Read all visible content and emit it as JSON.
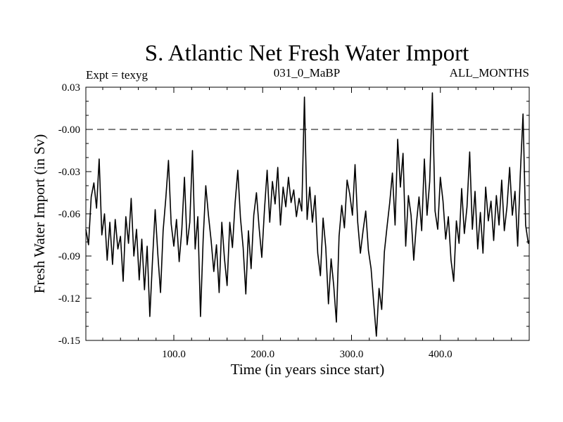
{
  "chart_data": {
    "type": "line",
    "title": "S. Atlantic Net Fresh Water Import",
    "subtitle_left": "Expt = texyg",
    "subtitle_center": "031_0_MaBP",
    "subtitle_right": "ALL_MONTHS",
    "xlabel": "Time (in years since start)",
    "ylabel": "Fresh Water Import (in Sv)",
    "xlim": [
      1,
      500
    ],
    "ylim": [
      -0.15,
      0.03
    ],
    "xticks": [
      100,
      200,
      300,
      400
    ],
    "xtick_labels": [
      "100.0",
      "200.0",
      "300.0",
      "400.0"
    ],
    "yticks": [
      0.03,
      0.0,
      -0.03,
      -0.06,
      -0.09,
      -0.12,
      -0.15
    ],
    "ytick_labels": [
      "0.03",
      "-0.00",
      "-0.03",
      "-0.06",
      "-0.09",
      "-0.12",
      "-0.15"
    ],
    "reference_line": {
      "y": 0.0,
      "style": "dashed"
    },
    "series": [
      {
        "values": [
          [
            1,
            -0.071
          ],
          [
            4,
            -0.082
          ],
          [
            7,
            -0.048
          ],
          [
            10,
            -0.038
          ],
          [
            13,
            -0.056
          ],
          [
            16,
            -0.021
          ],
          [
            19,
            -0.075
          ],
          [
            22,
            -0.06
          ],
          [
            25,
            -0.093
          ],
          [
            28,
            -0.066
          ],
          [
            31,
            -0.096
          ],
          [
            34,
            -0.064
          ],
          [
            37,
            -0.085
          ],
          [
            40,
            -0.076
          ],
          [
            43,
            -0.108
          ],
          [
            46,
            -0.062
          ],
          [
            49,
            -0.081
          ],
          [
            52,
            -0.049
          ],
          [
            55,
            -0.09
          ],
          [
            58,
            -0.071
          ],
          [
            61,
            -0.107
          ],
          [
            64,
            -0.078
          ],
          [
            67,
            -0.114
          ],
          [
            70,
            -0.083
          ],
          [
            73,
            -0.133
          ],
          [
            76,
            -0.093
          ],
          [
            79,
            -0.057
          ],
          [
            82,
            -0.089
          ],
          [
            85,
            -0.116
          ],
          [
            88,
            -0.072
          ],
          [
            91,
            -0.049
          ],
          [
            94,
            -0.022
          ],
          [
            97,
            -0.067
          ],
          [
            100,
            -0.083
          ],
          [
            103,
            -0.064
          ],
          [
            106,
            -0.094
          ],
          [
            109,
            -0.071
          ],
          [
            112,
            -0.034
          ],
          [
            115,
            -0.082
          ],
          [
            118,
            -0.066
          ],
          [
            121,
            -0.015
          ],
          [
            124,
            -0.085
          ],
          [
            127,
            -0.062
          ],
          [
            130,
            -0.133
          ],
          [
            133,
            -0.078
          ],
          [
            136,
            -0.04
          ],
          [
            139,
            -0.061
          ],
          [
            142,
            -0.079
          ],
          [
            145,
            -0.101
          ],
          [
            148,
            -0.082
          ],
          [
            151,
            -0.116
          ],
          [
            154,
            -0.066
          ],
          [
            157,
            -0.092
          ],
          [
            160,
            -0.111
          ],
          [
            163,
            -0.066
          ],
          [
            166,
            -0.084
          ],
          [
            169,
            -0.052
          ],
          [
            172,
            -0.029
          ],
          [
            175,
            -0.063
          ],
          [
            178,
            -0.084
          ],
          [
            181,
            -0.117
          ],
          [
            184,
            -0.072
          ],
          [
            187,
            -0.099
          ],
          [
            190,
            -0.061
          ],
          [
            193,
            -0.045
          ],
          [
            196,
            -0.07
          ],
          [
            199,
            -0.091
          ],
          [
            202,
            -0.057
          ],
          [
            205,
            -0.029
          ],
          [
            208,
            -0.066
          ],
          [
            211,
            -0.037
          ],
          [
            214,
            -0.053
          ],
          [
            217,
            -0.027
          ],
          [
            220,
            -0.068
          ],
          [
            223,
            -0.041
          ],
          [
            226,
            -0.055
          ],
          [
            229,
            -0.034
          ],
          [
            232,
            -0.052
          ],
          [
            235,
            -0.043
          ],
          [
            238,
            -0.062
          ],
          [
            241,
            -0.049
          ],
          [
            244,
            -0.058
          ],
          [
            247,
            0.023
          ],
          [
            250,
            -0.064
          ],
          [
            253,
            -0.041
          ],
          [
            256,
            -0.066
          ],
          [
            259,
            -0.047
          ],
          [
            262,
            -0.088
          ],
          [
            265,
            -0.104
          ],
          [
            268,
            -0.063
          ],
          [
            271,
            -0.084
          ],
          [
            274,
            -0.124
          ],
          [
            277,
            -0.092
          ],
          [
            280,
            -0.111
          ],
          [
            283,
            -0.137
          ],
          [
            286,
            -0.076
          ],
          [
            289,
            -0.054
          ],
          [
            292,
            -0.07
          ],
          [
            295,
            -0.036
          ],
          [
            298,
            -0.046
          ],
          [
            301,
            -0.061
          ],
          [
            304,
            -0.025
          ],
          [
            307,
            -0.066
          ],
          [
            310,
            -0.088
          ],
          [
            313,
            -0.072
          ],
          [
            316,
            -0.058
          ],
          [
            319,
            -0.086
          ],
          [
            322,
            -0.099
          ],
          [
            325,
            -0.124
          ],
          [
            328,
            -0.147
          ],
          [
            331,
            -0.113
          ],
          [
            334,
            -0.128
          ],
          [
            337,
            -0.087
          ],
          [
            340,
            -0.069
          ],
          [
            343,
            -0.052
          ],
          [
            346,
            -0.031
          ],
          [
            349,
            -0.068
          ],
          [
            352,
            -0.007
          ],
          [
            355,
            -0.041
          ],
          [
            358,
            -0.017
          ],
          [
            361,
            -0.083
          ],
          [
            364,
            -0.047
          ],
          [
            367,
            -0.061
          ],
          [
            370,
            -0.093
          ],
          [
            373,
            -0.067
          ],
          [
            376,
            -0.048
          ],
          [
            379,
            -0.072
          ],
          [
            382,
            -0.021
          ],
          [
            385,
            -0.061
          ],
          [
            388,
            -0.037
          ],
          [
            391,
            0.026
          ],
          [
            394,
            -0.058
          ],
          [
            397,
            -0.071
          ],
          [
            400,
            -0.034
          ],
          [
            403,
            -0.051
          ],
          [
            406,
            -0.078
          ],
          [
            409,
            -0.062
          ],
          [
            412,
            -0.093
          ],
          [
            415,
            -0.108
          ],
          [
            418,
            -0.065
          ],
          [
            421,
            -0.081
          ],
          [
            424,
            -0.042
          ],
          [
            427,
            -0.074
          ],
          [
            430,
            -0.055
          ],
          [
            433,
            -0.016
          ],
          [
            436,
            -0.071
          ],
          [
            439,
            -0.044
          ],
          [
            442,
            -0.085
          ],
          [
            445,
            -0.059
          ],
          [
            448,
            -0.088
          ],
          [
            451,
            -0.041
          ],
          [
            454,
            -0.065
          ],
          [
            457,
            -0.051
          ],
          [
            460,
            -0.079
          ],
          [
            463,
            -0.047
          ],
          [
            466,
            -0.068
          ],
          [
            469,
            -0.036
          ],
          [
            472,
            -0.072
          ],
          [
            475,
            -0.055
          ],
          [
            478,
            -0.027
          ],
          [
            481,
            -0.061
          ],
          [
            484,
            -0.044
          ],
          [
            487,
            -0.083
          ],
          [
            490,
            -0.031
          ],
          [
            493,
            0.011
          ],
          [
            496,
            -0.068
          ],
          [
            499,
            -0.081
          ],
          [
            500,
            -0.079
          ]
        ]
      }
    ]
  }
}
